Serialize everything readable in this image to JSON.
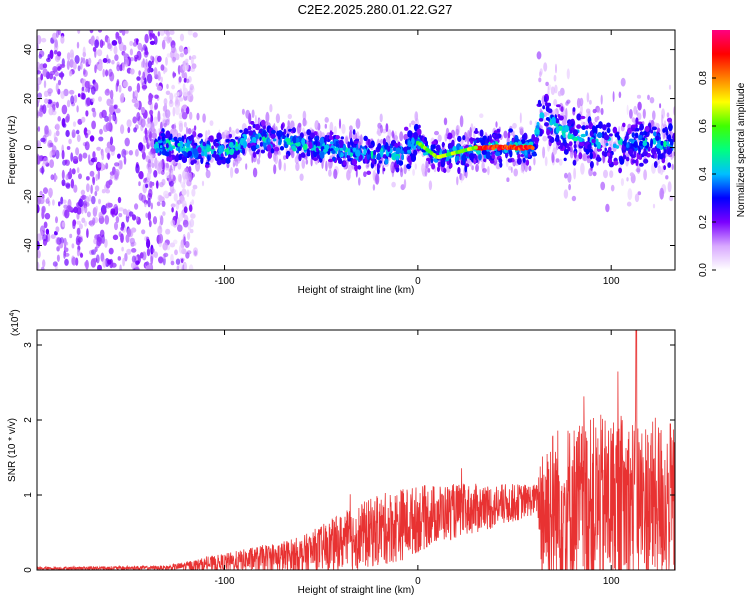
{
  "title": "C2E2.2025.280.01.22.G27",
  "chart_data": [
    {
      "type": "heatmap",
      "xlabel": "Height of straight line (km)",
      "ylabel": "Frequency (Hz)",
      "xlim": [
        -197,
        133
      ],
      "ylim": [
        -50,
        48
      ],
      "x_ticks": [
        "-100",
        "0",
        "100"
      ],
      "y_ticks": [
        "40",
        "20",
        "0",
        "-20",
        "-40"
      ],
      "colorbar": {
        "label": "Normalized spectral amplitude",
        "range": [
          0.0,
          1.0
        ],
        "ticks": [
          "0.0",
          "0.2",
          "0.4",
          "0.6",
          "0.8"
        ]
      },
      "ridge": [
        {
          "x": -135,
          "f": 1
        },
        {
          "x": -120,
          "f": 0
        },
        {
          "x": -100,
          "f": -2
        },
        {
          "x": -85,
          "f": 4
        },
        {
          "x": -70,
          "f": 2
        },
        {
          "x": -50,
          "f": 0
        },
        {
          "x": -30,
          "f": -2
        },
        {
          "x": -10,
          "f": -3
        },
        {
          "x": 0,
          "f": 2
        },
        {
          "x": 10,
          "f": -4
        },
        {
          "x": 20,
          "f": -2
        },
        {
          "x": 30,
          "f": 0
        },
        {
          "x": 45,
          "f": 0
        },
        {
          "x": 60,
          "f": 0
        },
        {
          "x": 63,
          "f": 14
        },
        {
          "x": 80,
          "f": 4
        },
        {
          "x": 100,
          "f": 2
        },
        {
          "x": 120,
          "f": 3
        },
        {
          "x": 133,
          "f": 0
        }
      ],
      "peak_region": {
        "x_start": 30,
        "x_end": 60,
        "freq": 0,
        "amplitude": 1.0
      }
    },
    {
      "type": "line",
      "xlabel": "Height of straight line (km)",
      "ylabel": "SNR (10 * v/v)",
      "y_scale_label": "(x10",
      "y_scale_exponent": "4",
      "xlim": [
        -197,
        133
      ],
      "ylim": [
        0,
        3.2
      ],
      "x_ticks": [
        "-100",
        "0",
        "100"
      ],
      "y_ticks": [
        "0",
        "1",
        "2",
        "3"
      ],
      "color": "#e83232",
      "envelope": [
        {
          "x": -197,
          "mean": 0.02,
          "spread": 0.02
        },
        {
          "x": -130,
          "mean": 0.03,
          "spread": 0.03
        },
        {
          "x": -100,
          "mean": 0.1,
          "spread": 0.12
        },
        {
          "x": -60,
          "mean": 0.2,
          "spread": 0.25
        },
        {
          "x": -30,
          "mean": 0.45,
          "spread": 0.45
        },
        {
          "x": -10,
          "mean": 0.6,
          "spread": 0.5
        },
        {
          "x": 10,
          "mean": 0.75,
          "spread": 0.4
        },
        {
          "x": 40,
          "mean": 0.85,
          "spread": 0.3
        },
        {
          "x": 62,
          "mean": 0.95,
          "spread": 0.2
        },
        {
          "x": 64,
          "mean": 0.8,
          "spread": 1.1
        },
        {
          "x": 100,
          "mean": 0.9,
          "spread": 1.2
        },
        {
          "x": 133,
          "mean": 0.9,
          "spread": 1.1
        }
      ],
      "max_value": 3.2,
      "max_at_x": 113
    }
  ]
}
